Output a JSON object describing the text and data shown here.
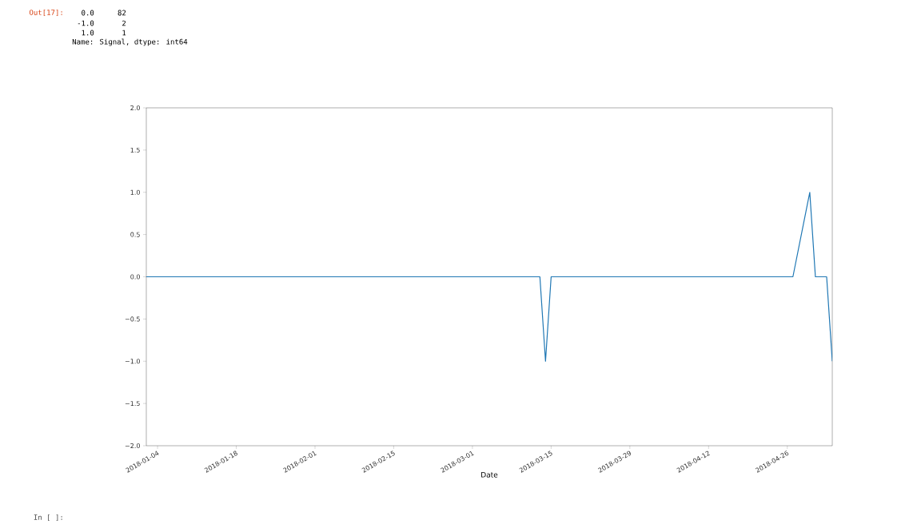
{
  "chart_data": {
    "type": "line",
    "xlabel": "Date",
    "x": [
      "2018-01-02",
      "2018-03-13",
      "2018-03-14",
      "2018-03-15",
      "2018-04-27",
      "2018-04-30",
      "2018-05-01",
      "2018-05-03",
      "2018-05-04"
    ],
    "series": [
      {
        "color": "#1f77b4",
        "values": [
          0,
          0,
          -1,
          0,
          0,
          1,
          0,
          0,
          -1
        ]
      }
    ],
    "xlim": [
      "2018-01-02",
      "2018-05-04"
    ],
    "xticks": [
      "2018-01-04",
      "2018-01-18",
      "2018-02-01",
      "2018-02-15",
      "2018-03-01",
      "2018-03-15",
      "2018-03-29",
      "2018-04-12",
      "2018-04-26"
    ],
    "ylim": [
      -2,
      2
    ],
    "yticks": [
      {
        "value": -2,
        "label": "−2.0"
      },
      {
        "value": -1.5,
        "label": "−1.5"
      },
      {
        "value": -1,
        "label": "−1.0"
      },
      {
        "value": -0.5,
        "label": "−0.5"
      },
      {
        "value": 0,
        "label": "0.0"
      },
      {
        "value": 0.5,
        "label": "0.5"
      },
      {
        "value": 1,
        "label": "1.0"
      },
      {
        "value": 1.5,
        "label": "1.5"
      },
      {
        "value": 2,
        "label": "2.0"
      }
    ],
    "marker": "none",
    "line_style": "solid",
    "annotations": [
      "Out[17]:",
      "0.0",
      "82",
      "-1.0",
      "2",
      "1.0",
      "1",
      "Name: Signal, dtype: int64",
      "In [ ]:"
    ]
  }
}
